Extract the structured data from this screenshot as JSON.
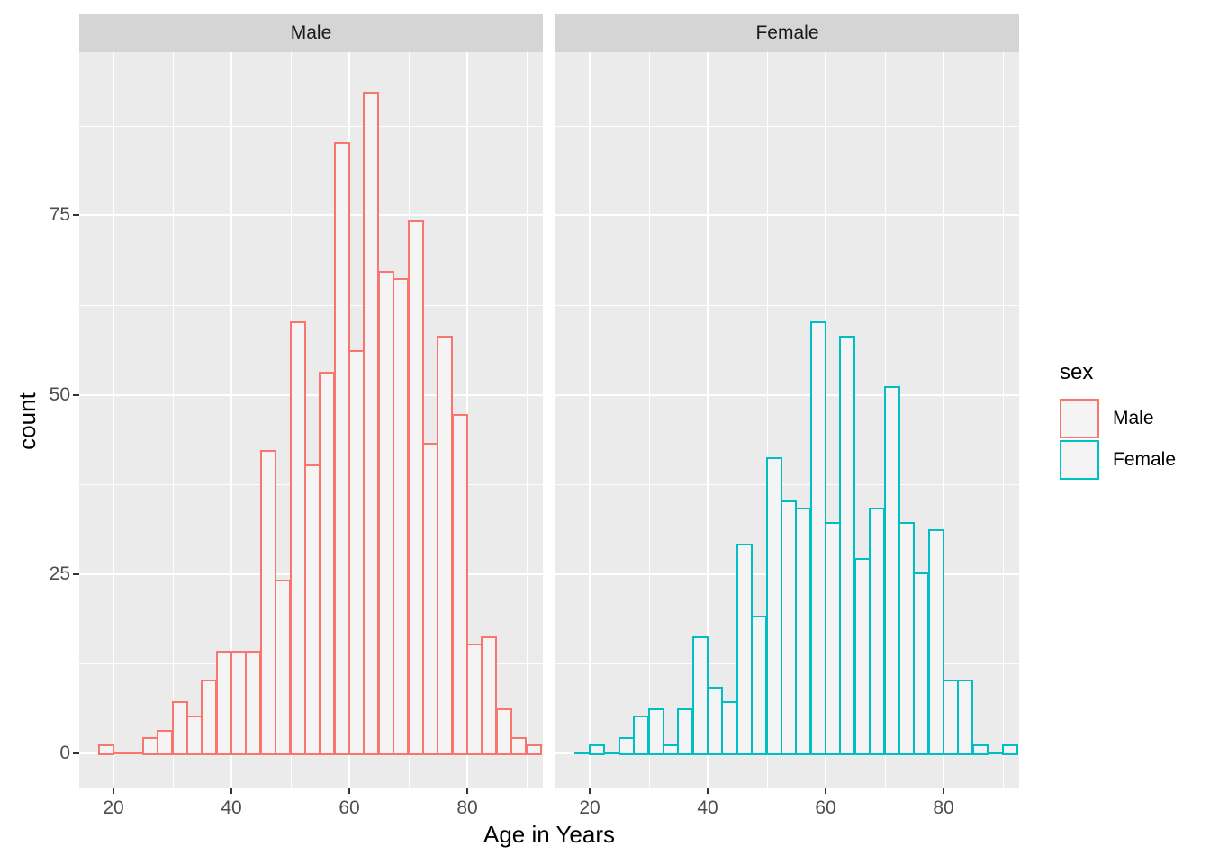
{
  "plot": {
    "x_axis_title": "Age in Years",
    "y_axis_title": "count",
    "facets": [
      {
        "label": "Male"
      },
      {
        "label": "Female"
      }
    ],
    "y_tick_labels": [
      "0",
      "25",
      "50",
      "75"
    ],
    "x_tick_labels": [
      "20",
      "40",
      "60",
      "80"
    ],
    "colors": {
      "panel_background": "#EBEBEB",
      "strip_background": "#D5D5D5",
      "gridline": "#FFFFFF",
      "bar_fill": "#F4F4F4",
      "male_outline": "#F8766D",
      "female_outline": "#00BFC4",
      "tick_text": "#4D4D4D",
      "strip_text": "#1A1A1A",
      "tick_mark": "#333333"
    }
  },
  "legend": {
    "title": "sex",
    "entries": [
      {
        "label": "Male",
        "color": "#F8766D"
      },
      {
        "label": "Female",
        "color": "#00BFC4"
      }
    ]
  },
  "chart_data": {
    "type": "bar",
    "subtype": "faceted histogram",
    "facet_variable": "sex",
    "facets": [
      "Male",
      "Female"
    ],
    "title": "",
    "xlabel": "Age in Years",
    "ylabel": "count",
    "binwidth": 2.5,
    "bin_start_ages": [
      17.5,
      20,
      22.5,
      25,
      27.5,
      30,
      32.5,
      35,
      37.5,
      40,
      42.5,
      45,
      47.5,
      50,
      52.5,
      55,
      57.5,
      60,
      62.5,
      65,
      67.5,
      70,
      72.5,
      75,
      77.5,
      80,
      82.5,
      85,
      87.5,
      90
    ],
    "series": [
      {
        "name": "Male",
        "outline_color": "#F8766D",
        "counts": [
          1,
          0,
          0,
          2,
          3,
          7,
          5,
          10,
          14,
          14,
          14,
          42,
          24,
          60,
          40,
          53,
          85,
          56,
          92,
          67,
          66,
          74,
          43,
          58,
          47,
          15,
          16,
          6,
          2,
          1
        ]
      },
      {
        "name": "Female",
        "outline_color": "#00BFC4",
        "counts": [
          0,
          1,
          0,
          2,
          5,
          6,
          1,
          6,
          16,
          9,
          7,
          29,
          19,
          41,
          35,
          34,
          60,
          32,
          58,
          27,
          34,
          51,
          32,
          25,
          31,
          10,
          10,
          1,
          0,
          1
        ]
      }
    ],
    "x_ticks": [
      20,
      40,
      60,
      80
    ],
    "y_ticks": [
      0,
      25,
      50,
      75
    ],
    "x_minor_gridlines": [
      30,
      50,
      70,
      90
    ],
    "y_minor_gridlines": [
      12.5,
      37.5,
      62.5,
      87.5
    ],
    "xlim": [
      14.3,
      95.7
    ],
    "ylim": [
      -4.8,
      97.7
    ],
    "grid": true,
    "legend_position": "right"
  }
}
